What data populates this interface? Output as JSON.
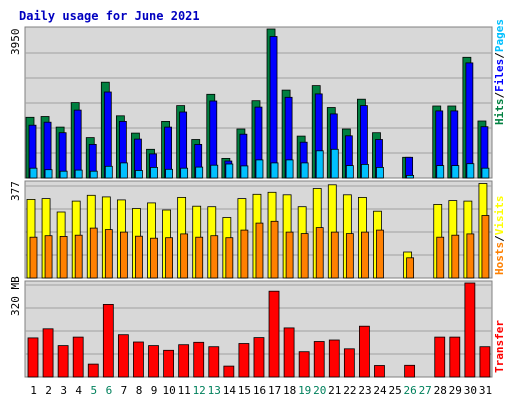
{
  "title": "Daily usage for June 2021",
  "colors": {
    "hits": "#008040",
    "files": "#0000ff",
    "pages": "#00c0ff",
    "visits": "#ffff00",
    "hosts": "#ff8000",
    "transfer": "#ff0000",
    "weekday_label": "#000000",
    "weekend_label": "#00805c",
    "panel_bg": "#d8d8d8",
    "grid": "#a0a0a0"
  },
  "labels": {
    "hits": "Hits",
    "files": "Files",
    "pages": "Pages",
    "hosts": "Hosts",
    "visits": "Visits",
    "transfer": "Transfer",
    "slash": "/"
  },
  "chart_data": [
    {
      "type": "bar",
      "title": "Daily usage for June 2021",
      "axis_max_label": "3950",
      "ylim": [
        0,
        3950
      ],
      "grid": true,
      "categories": [
        "1",
        "2",
        "3",
        "4",
        "5",
        "6",
        "7",
        "8",
        "9",
        "10",
        "11",
        "12",
        "13",
        "14",
        "15",
        "16",
        "17",
        "18",
        "19",
        "20",
        "21",
        "22",
        "23",
        "24",
        "25",
        "26",
        "27",
        "28",
        "29",
        "30",
        "31"
      ],
      "weekend_days": [
        "5",
        "6",
        "12",
        "13",
        "19",
        "20",
        "26",
        "27"
      ],
      "series": [
        {
          "name": "Hits",
          "values": [
            1610,
            1630,
            1350,
            2000,
            1070,
            2540,
            1650,
            1190,
            760,
            1500,
            1920,
            1020,
            2220,
            520,
            1300,
            2050,
            3950,
            2330,
            1110,
            2450,
            1870,
            1300,
            2090,
            1200,
            0,
            550,
            0,
            1910,
            1910,
            3200,
            1510
          ]
        },
        {
          "name": "Files",
          "values": [
            1400,
            1480,
            1200,
            1800,
            890,
            2280,
            1500,
            1030,
            640,
            1350,
            1750,
            890,
            2040,
            450,
            1160,
            1880,
            3750,
            2140,
            950,
            2230,
            1700,
            1120,
            1920,
            1020,
            0,
            550,
            0,
            1780,
            1780,
            3050,
            1360
          ]
        },
        {
          "name": "Pages",
          "values": [
            260,
            220,
            180,
            210,
            180,
            310,
            400,
            200,
            280,
            230,
            260,
            290,
            340,
            370,
            320,
            480,
            400,
            480,
            400,
            720,
            760,
            330,
            360,
            280,
            0,
            70,
            0,
            330,
            330,
            380,
            260
          ]
        }
      ]
    },
    {
      "type": "bar",
      "axis_max_label": "377",
      "ylim": [
        0,
        377
      ],
      "grid": true,
      "categories": [
        "1",
        "2",
        "3",
        "4",
        "5",
        "6",
        "7",
        "8",
        "9",
        "10",
        "11",
        "12",
        "13",
        "14",
        "15",
        "16",
        "17",
        "18",
        "19",
        "20",
        "21",
        "22",
        "23",
        "24",
        "25",
        "26",
        "27",
        "28",
        "29",
        "30",
        "31"
      ],
      "series": [
        {
          "name": "Visits",
          "values": [
            312,
            315,
            262,
            305,
            328,
            322,
            310,
            276,
            298,
            270,
            320,
            285,
            283,
            240,
            315,
            332,
            340,
            330,
            283,
            355,
            370,
            330,
            320,
            265,
            0,
            103,
            0,
            292,
            307,
            305,
            375
          ]
        },
        {
          "name": "Hosts",
          "values": [
            162,
            168,
            165,
            170,
            198,
            192,
            182,
            166,
            158,
            160,
            175,
            162,
            168,
            160,
            190,
            218,
            225,
            182,
            176,
            200,
            182,
            176,
            182,
            190,
            0,
            80,
            0,
            162,
            170,
            175,
            248
          ]
        }
      ]
    },
    {
      "type": "bar",
      "axis_max_label": "320 MB",
      "ylim": [
        0,
        320
      ],
      "grid": true,
      "categories": [
        "1",
        "2",
        "3",
        "4",
        "5",
        "6",
        "7",
        "8",
        "9",
        "10",
        "11",
        "12",
        "13",
        "14",
        "15",
        "16",
        "17",
        "18",
        "19",
        "20",
        "21",
        "22",
        "23",
        "24",
        "25",
        "26",
        "27",
        "28",
        "29",
        "30",
        "31"
      ],
      "series": [
        {
          "name": "Transfer",
          "values": [
            133,
            164,
            107,
            136,
            44,
            247,
            144,
            119,
            107,
            91,
            110,
            118,
            103,
            37,
            114,
            134,
            292,
            167,
            86,
            121,
            126,
            96,
            173,
            39,
            0,
            40,
            0,
            136,
            136,
            320,
            103
          ]
        }
      ]
    }
  ]
}
